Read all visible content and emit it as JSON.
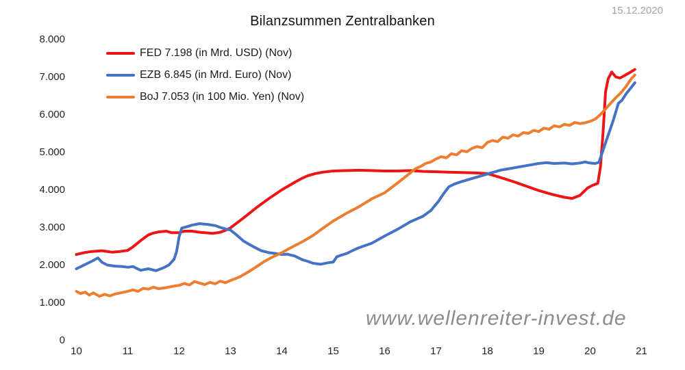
{
  "header": {
    "date_label": "15.12.2020"
  },
  "watermark_text": "www.wellenreiter-invest.de",
  "chart_data": {
    "type": "line",
    "title": "Bilanzsummen Zentralbanken",
    "xlabel": "",
    "ylabel": "",
    "xlim": [
      10,
      21
    ],
    "ylim": [
      0,
      8000
    ],
    "grid": false,
    "legend_position": "top-left",
    "x_ticks": [
      {
        "label": "10",
        "value": 10
      },
      {
        "label": "11",
        "value": 11
      },
      {
        "label": "12",
        "value": 12
      },
      {
        "label": "13",
        "value": 13
      },
      {
        "label": "14",
        "value": 14
      },
      {
        "label": "15",
        "value": 15
      },
      {
        "label": "16",
        "value": 16
      },
      {
        "label": "17",
        "value": 17
      },
      {
        "label": "18",
        "value": 18
      },
      {
        "label": "19",
        "value": 19
      },
      {
        "label": "20",
        "value": 20
      },
      {
        "label": "21",
        "value": 21
      }
    ],
    "y_ticks": [
      {
        "label": "8.000",
        "value": 8000
      },
      {
        "label": "7.000",
        "value": 7000
      },
      {
        "label": "6.000",
        "value": 6000
      },
      {
        "label": "5.000",
        "value": 5000
      },
      {
        "label": "4.000",
        "value": 4000
      },
      {
        "label": "3.000",
        "value": 3000
      },
      {
        "label": "2.000",
        "value": 2000
      },
      {
        "label": "1.000",
        "value": 1000
      },
      {
        "label": "0",
        "value": 0
      }
    ],
    "series": [
      {
        "name": "FED",
        "label": "FED 7.198 (in Mrd. USD) (Nov)",
        "unit": "Mrd. USD",
        "last_value": 7198,
        "color": "#ed1515",
        "points": [
          [
            10.0,
            2280
          ],
          [
            10.15,
            2330
          ],
          [
            10.3,
            2360
          ],
          [
            10.5,
            2380
          ],
          [
            10.7,
            2340
          ],
          [
            10.85,
            2360
          ],
          [
            11.0,
            2390
          ],
          [
            11.1,
            2480
          ],
          [
            11.25,
            2650
          ],
          [
            11.4,
            2800
          ],
          [
            11.5,
            2850
          ],
          [
            11.6,
            2880
          ],
          [
            11.75,
            2900
          ],
          [
            11.85,
            2860
          ],
          [
            12.0,
            2860
          ],
          [
            12.1,
            2900
          ],
          [
            12.25,
            2900
          ],
          [
            12.4,
            2870
          ],
          [
            12.5,
            2860
          ],
          [
            12.65,
            2840
          ],
          [
            12.8,
            2870
          ],
          [
            12.9,
            2920
          ],
          [
            13.0,
            2990
          ],
          [
            13.25,
            3250
          ],
          [
            13.5,
            3520
          ],
          [
            13.75,
            3770
          ],
          [
            14.0,
            4000
          ],
          [
            14.25,
            4200
          ],
          [
            14.4,
            4310
          ],
          [
            14.5,
            4370
          ],
          [
            14.65,
            4430
          ],
          [
            14.8,
            4470
          ],
          [
            15.0,
            4500
          ],
          [
            15.25,
            4510
          ],
          [
            15.5,
            4520
          ],
          [
            15.75,
            4510
          ],
          [
            16.0,
            4500
          ],
          [
            16.25,
            4500
          ],
          [
            16.5,
            4510
          ],
          [
            16.75,
            4490
          ],
          [
            17.0,
            4480
          ],
          [
            17.25,
            4470
          ],
          [
            17.5,
            4460
          ],
          [
            17.75,
            4450
          ],
          [
            18.0,
            4430
          ],
          [
            18.25,
            4330
          ],
          [
            18.5,
            4220
          ],
          [
            18.75,
            4100
          ],
          [
            19.0,
            3980
          ],
          [
            19.25,
            3880
          ],
          [
            19.5,
            3800
          ],
          [
            19.65,
            3770
          ],
          [
            19.8,
            3850
          ],
          [
            19.95,
            4050
          ],
          [
            20.05,
            4120
          ],
          [
            20.15,
            4170
          ],
          [
            20.2,
            4600
          ],
          [
            20.25,
            5500
          ],
          [
            20.3,
            6600
          ],
          [
            20.35,
            6950
          ],
          [
            20.42,
            7130
          ],
          [
            20.5,
            7000
          ],
          [
            20.58,
            6970
          ],
          [
            20.65,
            7020
          ],
          [
            20.75,
            7100
          ],
          [
            20.87,
            7198
          ]
        ]
      },
      {
        "name": "EZB",
        "label": "EZB 6.845 (in Mrd. Euro) (Nov)",
        "unit": "Mrd. Euro",
        "last_value": 6845,
        "color": "#4472c4",
        "points": [
          [
            10.0,
            1900
          ],
          [
            10.15,
            2000
          ],
          [
            10.3,
            2100
          ],
          [
            10.42,
            2190
          ],
          [
            10.5,
            2070
          ],
          [
            10.6,
            2000
          ],
          [
            10.75,
            1970
          ],
          [
            10.9,
            1960
          ],
          [
            11.0,
            1940
          ],
          [
            11.1,
            1960
          ],
          [
            11.25,
            1860
          ],
          [
            11.4,
            1900
          ],
          [
            11.55,
            1850
          ],
          [
            11.7,
            1930
          ],
          [
            11.8,
            2000
          ],
          [
            11.9,
            2150
          ],
          [
            11.95,
            2350
          ],
          [
            12.0,
            2750
          ],
          [
            12.05,
            2980
          ],
          [
            12.15,
            3020
          ],
          [
            12.25,
            3060
          ],
          [
            12.4,
            3100
          ],
          [
            12.55,
            3080
          ],
          [
            12.7,
            3050
          ],
          [
            12.8,
            3000
          ],
          [
            12.9,
            2960
          ],
          [
            13.0,
            2930
          ],
          [
            13.1,
            2820
          ],
          [
            13.25,
            2640
          ],
          [
            13.4,
            2520
          ],
          [
            13.5,
            2450
          ],
          [
            13.6,
            2380
          ],
          [
            13.75,
            2330
          ],
          [
            13.9,
            2300
          ],
          [
            14.0,
            2280
          ],
          [
            14.1,
            2290
          ],
          [
            14.25,
            2240
          ],
          [
            14.4,
            2140
          ],
          [
            14.5,
            2100
          ],
          [
            14.6,
            2050
          ],
          [
            14.75,
            2020
          ],
          [
            14.9,
            2060
          ],
          [
            15.0,
            2080
          ],
          [
            15.07,
            2220
          ],
          [
            15.15,
            2260
          ],
          [
            15.25,
            2300
          ],
          [
            15.4,
            2400
          ],
          [
            15.5,
            2460
          ],
          [
            15.75,
            2580
          ],
          [
            16.0,
            2770
          ],
          [
            16.25,
            2950
          ],
          [
            16.5,
            3150
          ],
          [
            16.75,
            3300
          ],
          [
            16.9,
            3450
          ],
          [
            17.05,
            3700
          ],
          [
            17.15,
            3900
          ],
          [
            17.25,
            4080
          ],
          [
            17.35,
            4150
          ],
          [
            17.5,
            4220
          ],
          [
            17.75,
            4320
          ],
          [
            18.0,
            4420
          ],
          [
            18.25,
            4520
          ],
          [
            18.5,
            4580
          ],
          [
            18.75,
            4640
          ],
          [
            19.0,
            4700
          ],
          [
            19.15,
            4720
          ],
          [
            19.3,
            4700
          ],
          [
            19.5,
            4710
          ],
          [
            19.65,
            4690
          ],
          [
            19.8,
            4710
          ],
          [
            19.9,
            4740
          ],
          [
            20.0,
            4710
          ],
          [
            20.1,
            4700
          ],
          [
            20.17,
            4730
          ],
          [
            20.25,
            5050
          ],
          [
            20.35,
            5450
          ],
          [
            20.45,
            5850
          ],
          [
            20.55,
            6300
          ],
          [
            20.62,
            6380
          ],
          [
            20.7,
            6550
          ],
          [
            20.8,
            6720
          ],
          [
            20.87,
            6845
          ]
        ]
      },
      {
        "name": "BoJ",
        "label": "BoJ 7.053 (in 100 Mio. Yen) (Nov)",
        "unit": "100 Mio. Yen",
        "last_value": 7053,
        "color": "#ed7d31",
        "points": [
          [
            10.0,
            1300
          ],
          [
            10.08,
            1240
          ],
          [
            10.17,
            1280
          ],
          [
            10.25,
            1200
          ],
          [
            10.33,
            1260
          ],
          [
            10.45,
            1170
          ],
          [
            10.55,
            1220
          ],
          [
            10.65,
            1180
          ],
          [
            10.75,
            1230
          ],
          [
            10.9,
            1270
          ],
          [
            11.0,
            1300
          ],
          [
            11.1,
            1340
          ],
          [
            11.2,
            1300
          ],
          [
            11.3,
            1380
          ],
          [
            11.4,
            1360
          ],
          [
            11.5,
            1410
          ],
          [
            11.6,
            1370
          ],
          [
            11.75,
            1400
          ],
          [
            11.9,
            1440
          ],
          [
            12.0,
            1460
          ],
          [
            12.1,
            1510
          ],
          [
            12.2,
            1470
          ],
          [
            12.3,
            1560
          ],
          [
            12.4,
            1520
          ],
          [
            12.5,
            1480
          ],
          [
            12.6,
            1540
          ],
          [
            12.7,
            1500
          ],
          [
            12.8,
            1570
          ],
          [
            12.9,
            1530
          ],
          [
            13.0,
            1590
          ],
          [
            13.1,
            1640
          ],
          [
            13.2,
            1700
          ],
          [
            13.35,
            1820
          ],
          [
            13.5,
            1950
          ],
          [
            13.65,
            2090
          ],
          [
            13.8,
            2200
          ],
          [
            14.0,
            2330
          ],
          [
            14.2,
            2480
          ],
          [
            14.4,
            2620
          ],
          [
            14.6,
            2780
          ],
          [
            14.8,
            2980
          ],
          [
            15.0,
            3170
          ],
          [
            15.25,
            3370
          ],
          [
            15.5,
            3550
          ],
          [
            15.75,
            3760
          ],
          [
            16.0,
            3920
          ],
          [
            16.25,
            4180
          ],
          [
            16.5,
            4450
          ],
          [
            16.6,
            4560
          ],
          [
            16.7,
            4620
          ],
          [
            16.8,
            4700
          ],
          [
            16.9,
            4740
          ],
          [
            17.0,
            4820
          ],
          [
            17.1,
            4880
          ],
          [
            17.2,
            4850
          ],
          [
            17.3,
            4960
          ],
          [
            17.4,
            4930
          ],
          [
            17.5,
            5040
          ],
          [
            17.6,
            5010
          ],
          [
            17.7,
            5100
          ],
          [
            17.8,
            5150
          ],
          [
            17.9,
            5120
          ],
          [
            18.0,
            5260
          ],
          [
            18.1,
            5310
          ],
          [
            18.2,
            5280
          ],
          [
            18.3,
            5400
          ],
          [
            18.4,
            5370
          ],
          [
            18.5,
            5460
          ],
          [
            18.6,
            5430
          ],
          [
            18.7,
            5520
          ],
          [
            18.8,
            5500
          ],
          [
            18.9,
            5580
          ],
          [
            19.0,
            5550
          ],
          [
            19.1,
            5640
          ],
          [
            19.2,
            5610
          ],
          [
            19.3,
            5700
          ],
          [
            19.4,
            5670
          ],
          [
            19.5,
            5740
          ],
          [
            19.6,
            5710
          ],
          [
            19.7,
            5790
          ],
          [
            19.8,
            5760
          ],
          [
            19.9,
            5780
          ],
          [
            20.0,
            5820
          ],
          [
            20.1,
            5880
          ],
          [
            20.2,
            6000
          ],
          [
            20.3,
            6150
          ],
          [
            20.4,
            6300
          ],
          [
            20.5,
            6450
          ],
          [
            20.6,
            6580
          ],
          [
            20.7,
            6750
          ],
          [
            20.8,
            6950
          ],
          [
            20.87,
            7053
          ]
        ]
      }
    ]
  }
}
